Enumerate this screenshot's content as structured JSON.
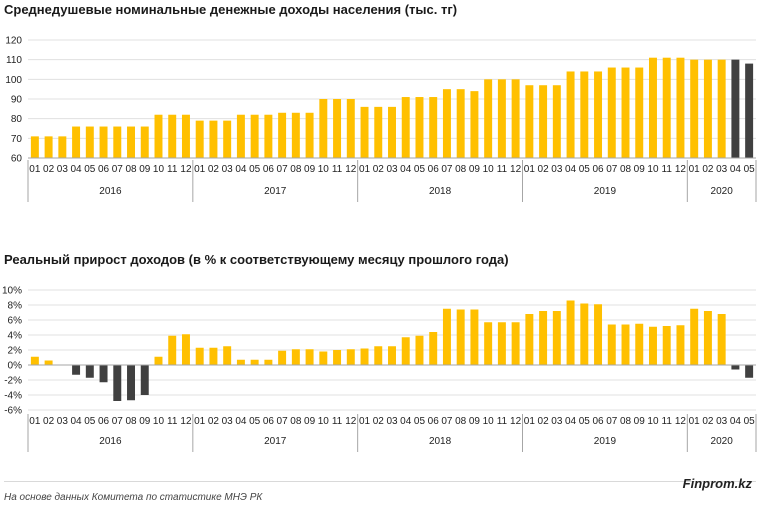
{
  "colors": {
    "yellow": "#FFC000",
    "dark": "#404040",
    "grid": "#e0e0e0",
    "axis": "#a6a6a6"
  },
  "footer": {
    "source": "На основе данных  Комитета по статистике МНЭ РК",
    "brand": "Finprom.kz"
  },
  "chart_data": [
    {
      "type": "bar",
      "title": "Среднедушевые номинальные денежные доходы населения (тыс. тг)",
      "ylim": [
        60,
        120
      ],
      "yticks": [
        60,
        70,
        80,
        90,
        100,
        110,
        120
      ],
      "ytick_labels": [
        "60",
        "70",
        "80",
        "90",
        "100",
        "110",
        "120"
      ],
      "grid": true,
      "month_labels": [
        "01",
        "02",
        "03",
        "04",
        "05",
        "06",
        "07",
        "08",
        "09",
        "10",
        "11",
        "12"
      ],
      "years": [
        "2016",
        "2017",
        "2018",
        "2019",
        "2020"
      ],
      "values": [
        71,
        71,
        71,
        76,
        76,
        76,
        76,
        76,
        76,
        82,
        82,
        82,
        79,
        79,
        79,
        82,
        82,
        82,
        83,
        83,
        83,
        90,
        90,
        90,
        86,
        86,
        86,
        91,
        91,
        91,
        95,
        95,
        94,
        100,
        100,
        100,
        97,
        97,
        97,
        104,
        104,
        104,
        106,
        106,
        106,
        111,
        111,
        111,
        110,
        110,
        110,
        110,
        108
      ],
      "bar_colors": [
        "y",
        "y",
        "y",
        "y",
        "y",
        "y",
        "y",
        "y",
        "y",
        "y",
        "y",
        "y",
        "y",
        "y",
        "y",
        "y",
        "y",
        "y",
        "y",
        "y",
        "y",
        "y",
        "y",
        "y",
        "y",
        "y",
        "y",
        "y",
        "y",
        "y",
        "y",
        "y",
        "y",
        "y",
        "y",
        "y",
        "y",
        "y",
        "y",
        "y",
        "y",
        "y",
        "y",
        "y",
        "y",
        "y",
        "y",
        "y",
        "y",
        "y",
        "y",
        "d",
        "d"
      ]
    },
    {
      "type": "bar",
      "title": "Реальный прирост доходов (в % к соответствующему месяцу прошлого года)",
      "ylim": [
        -6,
        10
      ],
      "yticks": [
        -6,
        -4,
        -2,
        0,
        2,
        4,
        6,
        8,
        10
      ],
      "ytick_labels": [
        "-6%",
        "-4%",
        "-2%",
        "0%",
        "2%",
        "4%",
        "6%",
        "8%",
        "10%"
      ],
      "grid": true,
      "month_labels": [
        "01",
        "02",
        "03",
        "04",
        "05",
        "06",
        "07",
        "08",
        "09",
        "10",
        "11",
        "12"
      ],
      "years": [
        "2016",
        "2017",
        "2018",
        "2019",
        "2020"
      ],
      "values": [
        1.1,
        0.6,
        0.0,
        -1.3,
        -1.7,
        -2.3,
        -4.8,
        -4.7,
        -4.0,
        1.1,
        3.9,
        4.1,
        2.3,
        2.3,
        2.5,
        0.7,
        0.7,
        0.7,
        1.9,
        2.1,
        2.1,
        1.8,
        2.0,
        2.1,
        2.2,
        2.5,
        2.5,
        3.7,
        3.9,
        4.4,
        7.5,
        7.4,
        7.4,
        5.7,
        5.7,
        5.7,
        6.8,
        7.2,
        7.2,
        8.6,
        8.2,
        8.1,
        5.4,
        5.4,
        5.5,
        5.1,
        5.2,
        5.3,
        7.5,
        7.2,
        6.8,
        -0.6,
        -1.7
      ],
      "bar_colors": [
        "y",
        "y",
        "y",
        "d",
        "d",
        "d",
        "d",
        "d",
        "d",
        "y",
        "y",
        "y",
        "y",
        "y",
        "y",
        "y",
        "y",
        "y",
        "y",
        "y",
        "y",
        "y",
        "y",
        "y",
        "y",
        "y",
        "y",
        "y",
        "y",
        "y",
        "y",
        "y",
        "y",
        "y",
        "y",
        "y",
        "y",
        "y",
        "y",
        "y",
        "y",
        "y",
        "y",
        "y",
        "y",
        "y",
        "y",
        "y",
        "y",
        "y",
        "y",
        "d",
        "d"
      ]
    }
  ]
}
